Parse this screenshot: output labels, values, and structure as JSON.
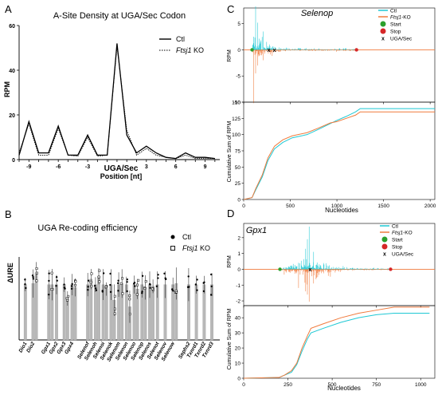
{
  "panel_letters": {
    "a": "A",
    "b": "B",
    "c": "C",
    "d": "D"
  },
  "colors": {
    "ctl_rpm": "#1fc8d4",
    "ko_rpm": "#f07a3c",
    "start": "#2ca02c",
    "stop": "#d62728",
    "bar": "#b8b8b8"
  },
  "chart_data": [
    {
      "id": "A",
      "type": "line",
      "title": "A-Site Density at UGA/Sec Codon",
      "ylabel": "RPM",
      "xlabel_main": "UGA/Sec",
      "xlabel_sub": "Position [nt]",
      "xlim": [
        -10,
        10.5
      ],
      "ylim": [
        0,
        60
      ],
      "xticks": [
        -9,
        -6,
        -3,
        3,
        6,
        9
      ],
      "yticks": [
        0,
        20,
        40,
        60
      ],
      "x": [
        -10,
        -9,
        -8,
        -7,
        -6,
        -5,
        -4,
        -3,
        -2,
        -1,
        0,
        1,
        2,
        3,
        4,
        5,
        6,
        7,
        8,
        9,
        10
      ],
      "legend": [
        {
          "label": "Ctl",
          "style": "solid"
        },
        {
          "label_italic": "Ftsj1",
          "label_rest": " KO",
          "style": "dotted"
        }
      ],
      "series": [
        {
          "name": "Ctl",
          "values": [
            2,
            17,
            3,
            3,
            15,
            2,
            2,
            11,
            2,
            2,
            52,
            11,
            3,
            6,
            3,
            1,
            0.5,
            3,
            1,
            1,
            0.5
          ]
        },
        {
          "name": "Ftsj1 KO",
          "values": [
            3,
            16,
            2,
            2,
            14,
            2,
            1.5,
            10,
            1.5,
            2,
            51,
            13,
            2,
            5,
            2,
            1,
            0.5,
            2,
            0.5,
            0.5,
            0.5
          ]
        }
      ]
    },
    {
      "id": "B",
      "type": "bar",
      "title": "UGA Re-coding efficiency",
      "ylabel": "ΔURE",
      "legend": [
        {
          "label": "Ctl",
          "marker": "filled-circle"
        },
        {
          "label_italic": "Ftsj1",
          "label_rest": " KO",
          "marker": "open-square"
        }
      ],
      "categories": [
        "Dio1",
        "Dio2",
        "Gpx1",
        "Gpx2",
        "Gpx3",
        "Gpx4",
        "Selenof",
        "Selenoh",
        "Selenoi",
        "Selenok",
        "Selenom",
        "Selenon",
        "Selenoo",
        "Selenop",
        "Selenos",
        "Selenot",
        "Selenov",
        "Selenow",
        "Sephs2",
        "Txnrd1",
        "Txnrd2",
        "Txnrd3"
      ],
      "series": [
        {
          "name": "Ctl",
          "values": [
            1.0,
            1.02,
            1.0,
            1.0,
            1.0,
            1.0,
            1.0,
            1.0,
            1.0,
            1.0,
            1.0,
            1.0,
            1.0,
            1.0,
            1.0,
            1.0,
            1.0,
            1.0,
            1.0,
            1.0,
            1.0,
            1.0
          ]
        },
        {
          "name": "Ftsj1 KO",
          "values": [
            0.0,
            1.22,
            1.0,
            0.0,
            0.75,
            0.95,
            1.1,
            1.15,
            0.92,
            0.72,
            1.02,
            0.6,
            0.92,
            0.95,
            0.97,
            0.0,
            0.0,
            1.02,
            0.0,
            0.0,
            0.0,
            0.0
          ]
        }
      ]
    },
    {
      "id": "C",
      "type": "line",
      "title": "Selenop",
      "top": {
        "ylabel": "RPM",
        "ylim": [
          -10,
          8
        ],
        "yticks": [
          -10,
          -5,
          0,
          5
        ],
        "legend": [
          "Ctl",
          "Ftsj1",
          "-KO",
          "Start",
          "Stop",
          "UGA/Sec"
        ],
        "markers": {
          "start_x": 90,
          "stop_x": 1210,
          "uga_x": [
            270,
            330
          ]
        }
      },
      "bottom": {
        "ylabel": "Cumulative Sum of RPM",
        "xlabel": "Nucleotides",
        "xlim": [
          0,
          2050
        ],
        "ylim": [
          0,
          150
        ],
        "xticks": [
          0,
          500,
          1000,
          1500,
          2000
        ],
        "yticks": [
          0,
          25,
          50,
          75,
          100,
          125,
          150
        ],
        "series": [
          {
            "name": "Ctl",
            "x": [
              0,
              90,
              130,
              200,
              260,
              330,
              420,
              520,
              680,
              800,
              930,
              1000,
              1100,
              1200,
              1250,
              2050
            ],
            "values": [
              0,
              3,
              15,
              35,
              60,
              78,
              88,
              95,
              100,
              108,
              117,
              122,
              128,
              135,
              140,
              140
            ]
          },
          {
            "name": "Ftsj1-KO",
            "x": [
              0,
              90,
              130,
              200,
              260,
              330,
              420,
              520,
              680,
              800,
              930,
              1000,
              1100,
              1200,
              1250,
              2050
            ],
            "values": [
              0,
              3,
              17,
              38,
              64,
              82,
              92,
              98,
              103,
              110,
              118,
              120,
              125,
              130,
              135,
              135
            ]
          }
        ]
      }
    },
    {
      "id": "D",
      "type": "line",
      "title": "Gpx1",
      "top": {
        "ylabel": "RPM",
        "ylim": [
          -2.3,
          2.9
        ],
        "yticks": [
          -2,
          -1,
          0,
          1,
          2
        ],
        "legend": [
          "Ctl",
          "Ftsj1",
          "-KO",
          "Start",
          "Stop",
          "UGA/Sec"
        ],
        "markers": {
          "start_x": 205,
          "stop_x": 830,
          "uga_x": [
            375
          ]
        }
      },
      "bottom": {
        "ylabel": "Cumulative Sum of RPM",
        "xlabel": "Nucleotides",
        "xlim": [
          0,
          1080
        ],
        "ylim": [
          0,
          48
        ],
        "xticks": [
          0,
          250,
          500,
          750,
          1000
        ],
        "yticks": [
          0,
          10,
          20,
          30,
          40
        ],
        "series": [
          {
            "name": "Ctl",
            "x": [
              0,
              200,
              230,
              270,
              300,
              330,
              360,
              380,
              450,
              550,
              650,
              750,
              850,
              1050
            ],
            "values": [
              0,
              0.5,
              2,
              4,
              9,
              18,
              26,
              30,
              33,
              37,
              40,
              42,
              43,
              43
            ]
          },
          {
            "name": "Ftsj1-KO",
            "x": [
              0,
              200,
              230,
              270,
              300,
              330,
              360,
              380,
              450,
              550,
              650,
              750,
              850,
              1050
            ],
            "values": [
              0,
              0.5,
              2,
              5,
              10,
              20,
              28,
              33,
              36,
              40,
              43,
              45,
              47,
              47
            ]
          }
        ]
      }
    }
  ]
}
